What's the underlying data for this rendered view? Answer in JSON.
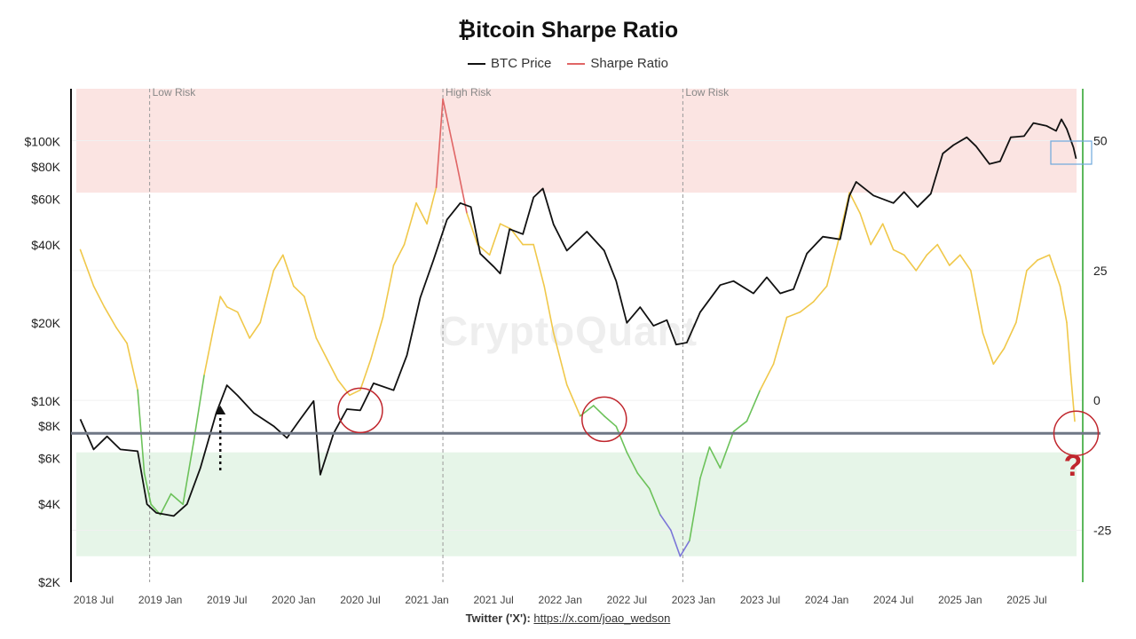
{
  "chart_data": {
    "type": "line",
    "title": "₿itcoin Sharpe Ratio",
    "legend": [
      {
        "name": "BTC Price",
        "color": "#111111"
      },
      {
        "name": "Sharpe Ratio",
        "color": "#e06666"
      }
    ],
    "x_ticks": [
      "2018 Jul",
      "2019 Jan",
      "2019 Jul",
      "2020 Jan",
      "2020 Jul",
      "2021 Jan",
      "2021 Jul",
      "2022 Jan",
      "2022 Jul",
      "2023 Jan",
      "2023 Jul",
      "2024 Jan",
      "2024 Jul",
      "2025 Jan",
      "2025 Jul"
    ],
    "x_range": [
      "2018-05",
      "2025-11"
    ],
    "y_left_scale": "log",
    "y_left_ticks": [
      {
        "v": 100000,
        "label": "$100K"
      },
      {
        "v": 80000,
        "label": "$80K"
      },
      {
        "v": 60000,
        "label": "$60K"
      },
      {
        "v": 40000,
        "label": "$40K"
      },
      {
        "v": 20000,
        "label": "$20K"
      },
      {
        "v": 10000,
        "label": "$10K"
      },
      {
        "v": 8000,
        "label": "$8K"
      },
      {
        "v": 6000,
        "label": "$6K"
      },
      {
        "v": 4000,
        "label": "$4K"
      },
      {
        "v": 2000,
        "label": "$2K"
      }
    ],
    "y_right_ticks": [
      50,
      25,
      0,
      -25
    ],
    "y_right_range": [
      -35,
      60
    ],
    "risk_lines": [
      {
        "date": "2018.92",
        "label": "Low Risk"
      },
      {
        "date": "2021.12",
        "label": "High Risk"
      },
      {
        "date": "2022.92",
        "label": "Low Risk"
      }
    ],
    "high_risk_zone": [
      40,
      60
    ],
    "low_risk_zone": [
      -30,
      -10
    ],
    "threshold_line_value": 7500,
    "btc_price": [
      [
        2018.4,
        8500
      ],
      [
        2018.5,
        6500
      ],
      [
        2018.6,
        7300
      ],
      [
        2018.7,
        6500
      ],
      [
        2018.83,
        6400
      ],
      [
        2018.9,
        4000
      ],
      [
        2018.97,
        3700
      ],
      [
        2019.1,
        3600
      ],
      [
        2019.2,
        4000
      ],
      [
        2019.3,
        5500
      ],
      [
        2019.42,
        9000
      ],
      [
        2019.5,
        11500
      ],
      [
        2019.58,
        10500
      ],
      [
        2019.7,
        9000
      ],
      [
        2019.85,
        8000
      ],
      [
        2019.95,
        7200
      ],
      [
        2020.05,
        8500
      ],
      [
        2020.15,
        10000
      ],
      [
        2020.2,
        5200
      ],
      [
        2020.3,
        7500
      ],
      [
        2020.4,
        9300
      ],
      [
        2020.5,
        9200
      ],
      [
        2020.6,
        11700
      ],
      [
        2020.75,
        11000
      ],
      [
        2020.85,
        15000
      ],
      [
        2020.95,
        25000
      ],
      [
        2021.05,
        35000
      ],
      [
        2021.15,
        50000
      ],
      [
        2021.25,
        58000
      ],
      [
        2021.33,
        56000
      ],
      [
        2021.4,
        37000
      ],
      [
        2021.5,
        33000
      ],
      [
        2021.55,
        31000
      ],
      [
        2021.62,
        46000
      ],
      [
        2021.72,
        44000
      ],
      [
        2021.8,
        61000
      ],
      [
        2021.87,
        66000
      ],
      [
        2021.95,
        48000
      ],
      [
        2022.05,
        38000
      ],
      [
        2022.2,
        45000
      ],
      [
        2022.33,
        38000
      ],
      [
        2022.42,
        29000
      ],
      [
        2022.5,
        20000
      ],
      [
        2022.6,
        23000
      ],
      [
        2022.7,
        19500
      ],
      [
        2022.8,
        20500
      ],
      [
        2022.87,
        16500
      ],
      [
        2022.95,
        16800
      ],
      [
        2023.05,
        22000
      ],
      [
        2023.2,
        28000
      ],
      [
        2023.3,
        29000
      ],
      [
        2023.45,
        26000
      ],
      [
        2023.55,
        30000
      ],
      [
        2023.65,
        26000
      ],
      [
        2023.75,
        27000
      ],
      [
        2023.85,
        37000
      ],
      [
        2023.97,
        43000
      ],
      [
        2024.1,
        42000
      ],
      [
        2024.17,
        62000
      ],
      [
        2024.22,
        70000
      ],
      [
        2024.35,
        62000
      ],
      [
        2024.5,
        58000
      ],
      [
        2024.58,
        64000
      ],
      [
        2024.68,
        56000
      ],
      [
        2024.78,
        63000
      ],
      [
        2024.87,
        90000
      ],
      [
        2024.95,
        97000
      ],
      [
        2025.05,
        104000
      ],
      [
        2025.12,
        96000
      ],
      [
        2025.22,
        82000
      ],
      [
        2025.3,
        84000
      ],
      [
        2025.38,
        104000
      ],
      [
        2025.48,
        105000
      ],
      [
        2025.55,
        118000
      ],
      [
        2025.65,
        115000
      ],
      [
        2025.72,
        110000
      ],
      [
        2025.76,
        122000
      ],
      [
        2025.8,
        112000
      ],
      [
        2025.85,
        95000
      ],
      [
        2025.87,
        86000
      ]
    ],
    "sharpe_ratio": [
      [
        2018.4,
        29
      ],
      [
        2018.5,
        22
      ],
      [
        2018.58,
        18
      ],
      [
        2018.67,
        14
      ],
      [
        2018.75,
        11
      ],
      [
        2018.83,
        2
      ],
      [
        2018.88,
        -14
      ],
      [
        2018.93,
        -20
      ],
      [
        2019.0,
        -22
      ],
      [
        2019.08,
        -18
      ],
      [
        2019.17,
        -20
      ],
      [
        2019.25,
        -8
      ],
      [
        2019.33,
        5
      ],
      [
        2019.4,
        14
      ],
      [
        2019.45,
        20
      ],
      [
        2019.5,
        18
      ],
      [
        2019.58,
        17
      ],
      [
        2019.67,
        12
      ],
      [
        2019.75,
        15
      ],
      [
        2019.85,
        25
      ],
      [
        2019.92,
        28
      ],
      [
        2020.0,
        22
      ],
      [
        2020.08,
        20
      ],
      [
        2020.17,
        12
      ],
      [
        2020.25,
        8
      ],
      [
        2020.33,
        4
      ],
      [
        2020.42,
        1
      ],
      [
        2020.5,
        2
      ],
      [
        2020.58,
        8
      ],
      [
        2020.67,
        16
      ],
      [
        2020.75,
        26
      ],
      [
        2020.83,
        30
      ],
      [
        2020.92,
        38
      ],
      [
        2021.0,
        34
      ],
      [
        2021.07,
        41
      ],
      [
        2021.12,
        58
      ],
      [
        2021.17,
        52
      ],
      [
        2021.22,
        46
      ],
      [
        2021.3,
        36
      ],
      [
        2021.38,
        30
      ],
      [
        2021.47,
        28
      ],
      [
        2021.55,
        34
      ],
      [
        2021.63,
        33
      ],
      [
        2021.72,
        30
      ],
      [
        2021.8,
        30
      ],
      [
        2021.88,
        22
      ],
      [
        2021.95,
        13
      ],
      [
        2022.05,
        3
      ],
      [
        2022.15,
        -3
      ],
      [
        2022.25,
        -1
      ],
      [
        2022.33,
        -3
      ],
      [
        2022.42,
        -5
      ],
      [
        2022.5,
        -10
      ],
      [
        2022.58,
        -14
      ],
      [
        2022.67,
        -17
      ],
      [
        2022.75,
        -22
      ],
      [
        2022.83,
        -25
      ],
      [
        2022.9,
        -30
      ],
      [
        2022.97,
        -27
      ],
      [
        2023.05,
        -15
      ],
      [
        2023.12,
        -9
      ],
      [
        2023.2,
        -13
      ],
      [
        2023.3,
        -6
      ],
      [
        2023.4,
        -4
      ],
      [
        2023.5,
        2
      ],
      [
        2023.6,
        7
      ],
      [
        2023.7,
        16
      ],
      [
        2023.8,
        17
      ],
      [
        2023.9,
        19
      ],
      [
        2024.0,
        22
      ],
      [
        2024.08,
        30
      ],
      [
        2024.17,
        40
      ],
      [
        2024.25,
        36
      ],
      [
        2024.33,
        30
      ],
      [
        2024.42,
        34
      ],
      [
        2024.5,
        29
      ],
      [
        2024.58,
        28
      ],
      [
        2024.67,
        25
      ],
      [
        2024.75,
        28
      ],
      [
        2024.83,
        30
      ],
      [
        2024.92,
        26
      ],
      [
        2025.0,
        28
      ],
      [
        2025.08,
        25
      ],
      [
        2025.17,
        13
      ],
      [
        2025.25,
        7
      ],
      [
        2025.33,
        10
      ],
      [
        2025.42,
        15
      ],
      [
        2025.5,
        25
      ],
      [
        2025.58,
        27
      ],
      [
        2025.67,
        28
      ],
      [
        2025.75,
        22
      ],
      [
        2025.8,
        15
      ],
      [
        2025.83,
        5
      ],
      [
        2025.86,
        -4
      ]
    ],
    "annotations": [
      "?"
    ]
  },
  "footer": {
    "twitter_label": "Twitter ('X'):",
    "twitter_url": "https://x.com/joao_wedson"
  },
  "watermark": "CryptoQuant"
}
